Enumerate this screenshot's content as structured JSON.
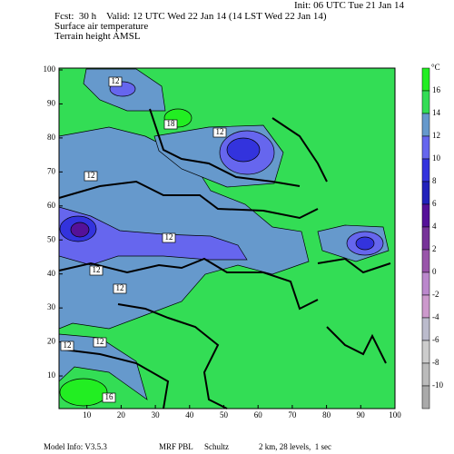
{
  "header": {
    "init": "Init: 06 UTC Tue 21 Jan 14",
    "valid": "Fcst:  30 h    Valid: 12 UTC Wed 22 Jan 14 (14 LST Wed 22 Jan 14)",
    "field": "Surface air temperature",
    "terrain": "Terrain height AMSL"
  },
  "map": {
    "xticks": [
      10,
      20,
      30,
      40,
      50,
      60,
      70,
      80,
      90,
      100
    ],
    "yticks": [
      10,
      20,
      30,
      40,
      50,
      60,
      70,
      80,
      90,
      100
    ],
    "contour_labels": [
      "12",
      "18",
      "12",
      "12",
      "12",
      "12",
      "12",
      "12",
      "12",
      "16"
    ]
  },
  "colorbar": {
    "unit": "°C",
    "labels": [
      16,
      14,
      12,
      10,
      8,
      6,
      4,
      2,
      0,
      -2,
      -4,
      -6,
      -8,
      -10
    ],
    "colors": [
      "#22ee22",
      "#33dd55",
      "#6699cc",
      "#6666ee",
      "#3333dd",
      "#2222bb",
      "#551199",
      "#773399",
      "#9955aa",
      "#bb88cc",
      "#cc99cc",
      "#bbbbcc",
      "#cccccc",
      "#bbbbbb",
      "#aaaaaa"
    ]
  },
  "footer": {
    "model": "Model Info: V3.5.3",
    "pbl": "MRF PBL",
    "scheme": "Schultz",
    "grid": "2 km, 28 levels,  1 sec"
  }
}
